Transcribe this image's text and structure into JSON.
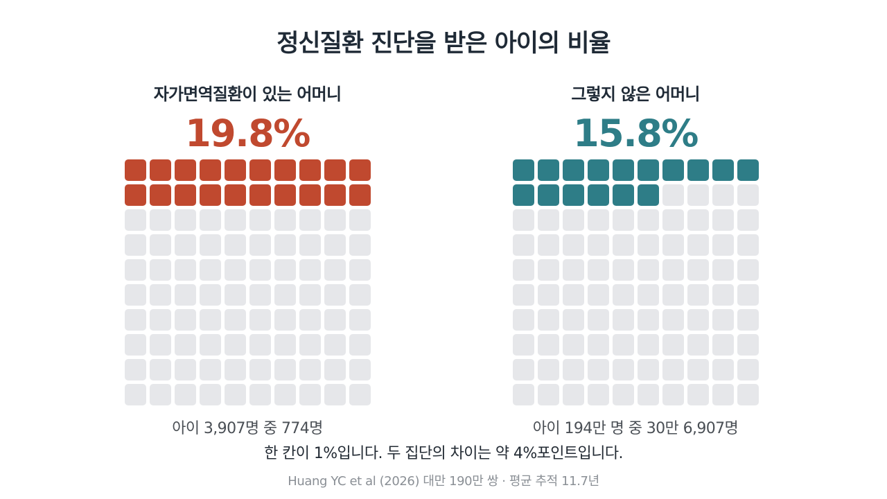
{
  "title": "정신질환 진단을 받은 아이의 비율",
  "colors": {
    "left_accent": "#c0492f",
    "right_accent": "#2e7d87",
    "empty_cell": "#e6e7ea"
  },
  "chart_data": {
    "type": "waffle",
    "grid": {
      "rows": 10,
      "cols": 10
    },
    "unit": "1%",
    "groups": [
      {
        "label": "자가면역질환이 있는 어머니",
        "percent_label": "19.8%",
        "value": 19.8,
        "filled_cells": 20,
        "count_label": "아이 3,907명 중 774명"
      },
      {
        "label": "그렇지 않은 어머니",
        "percent_label": "15.8%",
        "value": 15.8,
        "filled_cells": 16,
        "count_label": "아이 194만 명 중 30만 6,907명"
      }
    ]
  },
  "note": "한 칸이 1%입니다. 두 집단의 차이는 약 4%포인트입니다.",
  "source": "Huang YC et al (2026) 대만 190만 쌍 · 평균 추적 11.7년"
}
